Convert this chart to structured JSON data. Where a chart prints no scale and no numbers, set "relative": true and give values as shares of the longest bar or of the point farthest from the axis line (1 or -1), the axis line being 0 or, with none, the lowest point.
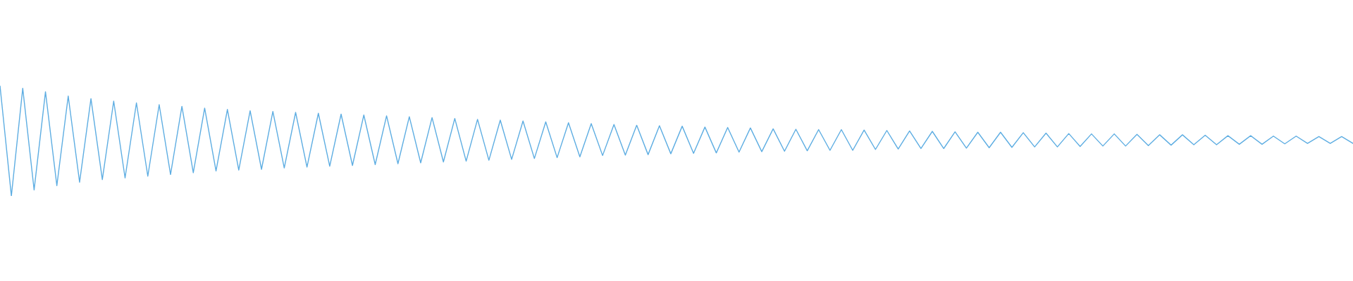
{
  "chart_data": {
    "type": "line",
    "relative": true,
    "marker": "none",
    "line_style": "solid",
    "categories": [
      null,
      null,
      null,
      null,
      null,
      null,
      null,
      null,
      null,
      null,
      null,
      null,
      null,
      null,
      null,
      null,
      null,
      null,
      null,
      null,
      null,
      null,
      null,
      null,
      null,
      null,
      null,
      null,
      null,
      null,
      null,
      null,
      null,
      null,
      null,
      null,
      null,
      null,
      null,
      null,
      null,
      null,
      null,
      null,
      null,
      null,
      null,
      null,
      null,
      null,
      null,
      null,
      null,
      null,
      null,
      null,
      null,
      null,
      null,
      null,
      null,
      null,
      null,
      null,
      null,
      null,
      null,
      null,
      null,
      null,
      null,
      null,
      null,
      null,
      null,
      null,
      null,
      null,
      null,
      null,
      null,
      null,
      null,
      null,
      null,
      null,
      null,
      null,
      null,
      null,
      null,
      null,
      null,
      null,
      null,
      null,
      null,
      null,
      null,
      null,
      null,
      null,
      null,
      null,
      null,
      null,
      null,
      null,
      null,
      null,
      null,
      null,
      null,
      null,
      null,
      null,
      null,
      null,
      null,
      null
    ],
    "series": [
      {
        "color": "#5dade2",
        "values": [
          1.0,
          0.0,
          0.977,
          0.055,
          0.945,
          0.094,
          0.906,
          0.125,
          0.883,
          0.149,
          0.86,
          0.164,
          0.844,
          0.18,
          0.828,
          0.195,
          0.813,
          0.211,
          0.797,
          0.227,
          0.785,
          0.235,
          0.773,
          0.242,
          0.766,
          0.254,
          0.758,
          0.262,
          0.75,
          0.27,
          0.742,
          0.277,
          0.734,
          0.285,
          0.727,
          0.293,
          0.719,
          0.301,
          0.711,
          0.309,
          0.703,
          0.316,
          0.695,
          0.324,
          0.688,
          0.332,
          0.68,
          0.34,
          0.672,
          0.348,
          0.664,
          0.355,
          0.656,
          0.367,
          0.648,
          0.371,
          0.641,
          0.375,
          0.637,
          0.383,
          0.633,
          0.387,
          0.625,
          0.391,
          0.621,
          0.398,
          0.617,
          0.402,
          0.609,
          0.406,
          0.605,
          0.41,
          0.602,
          0.414,
          0.602,
          0.414,
          0.598,
          0.422,
          0.594,
          0.426,
          0.59,
          0.43,
          0.586,
          0.43,
          0.582,
          0.434,
          0.578,
          0.438,
          0.578,
          0.441,
          0.574,
          0.445,
          0.57,
          0.445,
          0.566,
          0.449,
          0.563,
          0.453,
          0.563,
          0.453,
          0.559,
          0.457,
          0.555,
          0.461,
          0.555,
          0.465,
          0.551,
          0.465,
          0.547,
          0.469,
          0.547,
          0.469,
          0.543,
          0.473,
          0.543,
          0.477,
          0.539,
          0.477,
          0.539,
          0.477
        ]
      }
    ]
  }
}
